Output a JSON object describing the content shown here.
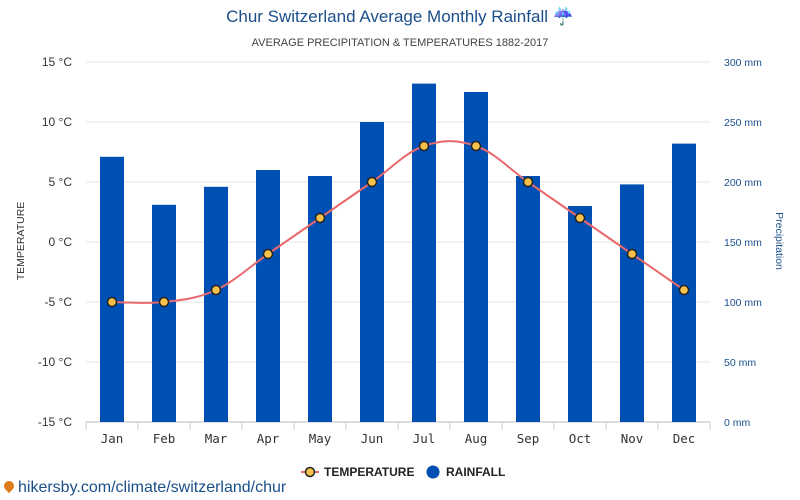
{
  "chart_data": {
    "type": "bar",
    "title": "Chur Switzerland Average Monthly Rainfall ☔",
    "subtitle": "AVERAGE PRECIPITATION & TEMPERATURES 1882-2017",
    "categories": [
      "Jan",
      "Feb",
      "Mar",
      "Apr",
      "May",
      "Jun",
      "Jul",
      "Aug",
      "Sep",
      "Oct",
      "Nov",
      "Dec"
    ],
    "series": [
      {
        "name": "RAINFALL",
        "type": "bar",
        "axis": "right",
        "unit": "mm",
        "color": "#0050b3",
        "values": [
          221,
          181,
          196,
          210,
          205,
          250,
          282,
          275,
          205,
          180,
          198,
          232
        ]
      },
      {
        "name": "TEMPERATURE",
        "type": "line",
        "axis": "left",
        "unit": "°C",
        "color": "#e8696b",
        "marker_color": "#f7c04a",
        "values": [
          -5,
          -5,
          -4,
          -1,
          2,
          5,
          8,
          8,
          5,
          2,
          -1,
          -4
        ]
      }
    ],
    "ylabel_left": "TEMPERATURE",
    "ylabel_right": "Precipitation",
    "ylim_left": [
      -15,
      15
    ],
    "ylim_right": [
      0,
      300
    ],
    "yticks_left": [
      "15 °C",
      "10 °C",
      "5 °C",
      "0 °C",
      "-5 °C",
      "-10 °C",
      "-15 °C"
    ],
    "yticks_right": [
      "300 mm",
      "250 mm",
      "200 mm",
      "150 mm",
      "100 mm",
      "50 mm",
      "0 mm"
    ],
    "grid": true,
    "legend_position": "bottom-center"
  },
  "source_text": "hikersby.com/climate/switzerland/chur"
}
